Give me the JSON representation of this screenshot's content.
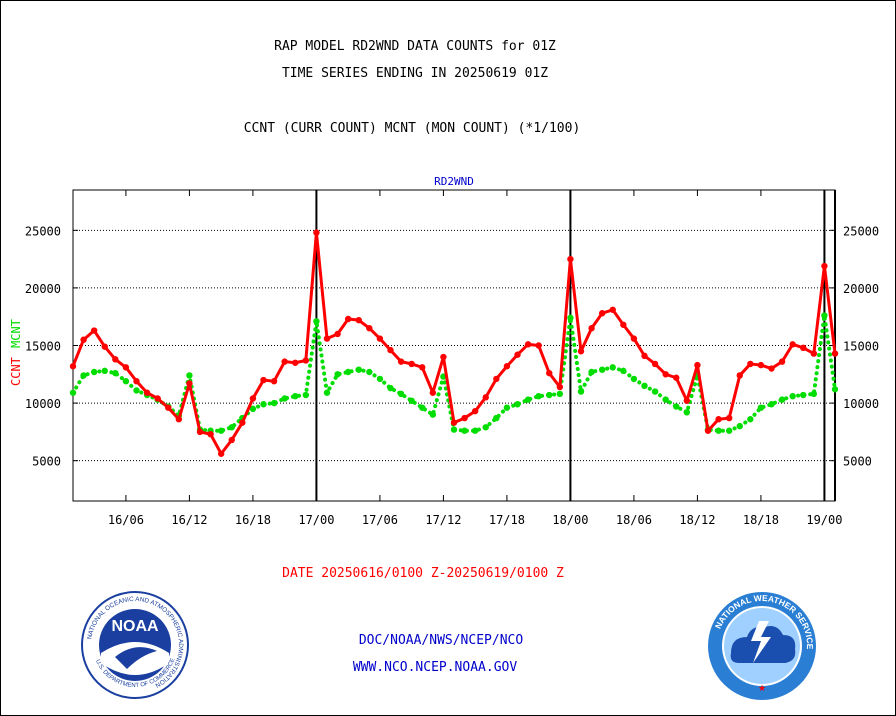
{
  "header": {
    "title_line1": "RAP MODEL RD2WND DATA COUNTS for 01Z",
    "title_line2": "TIME SERIES ENDING IN 20250619 01Z",
    "subtitle": "CCNT (CURR COUNT) MCNT (MON COUNT) (*1/100)"
  },
  "footer": {
    "date_range": "DATE 20250616/0100 Z-20250619/0100 Z",
    "org_line": "DOC/NOAA/NWS/NCEP/NCO",
    "url_line": "WWW.NCO.NCEP.NOAA.GOV"
  },
  "logos": {
    "noaa_center_text": "NOAA",
    "noaa_ring_text": "NATIONAL OCEANIC AND ATMOSPHERIC ADMINISTRATION",
    "noaa_ring_bottom": "U.S. DEPARTMENT OF COMMERCE",
    "nws_ring_text": "NATIONAL WEATHER SERVICE"
  },
  "colors": {
    "ccnt": "#ff0000",
    "mcnt": "#00dd00",
    "title_blue": "#0000cc",
    "date_red": "#ff0000",
    "footer_blue": "#0000cc",
    "noaa_blue": "#1a3fa0",
    "nws_blue": "#2a7fd4"
  },
  "chart_data": {
    "type": "line",
    "title": "RD2WND",
    "ylabel_ccnt": "CCNT",
    "ylabel_mcnt": "MCNT",
    "x_unit": "hours from 20250616/0100 Z",
    "xlim": [
      0,
      72
    ],
    "ylim": [
      1500,
      28500
    ],
    "yticks": [
      5000,
      10000,
      15000,
      20000,
      25000
    ],
    "xticks": [
      {
        "label": "16/06",
        "x": 5
      },
      {
        "label": "16/12",
        "x": 11
      },
      {
        "label": "16/18",
        "x": 17
      },
      {
        "label": "17/00",
        "x": 23
      },
      {
        "label": "17/06",
        "x": 29
      },
      {
        "label": "17/12",
        "x": 35
      },
      {
        "label": "17/18",
        "x": 41
      },
      {
        "label": "18/00",
        "x": 47
      },
      {
        "label": "18/06",
        "x": 53
      },
      {
        "label": "18/12",
        "x": 59
      },
      {
        "label": "18/18",
        "x": 65
      },
      {
        "label": "19/00",
        "x": 71
      }
    ],
    "vertical_markers": [
      23,
      47,
      71,
      72
    ],
    "grid": "horizontal dotted at y ticks",
    "series": [
      {
        "name": "CCNT",
        "values": [
          13200,
          15500,
          16300,
          14900,
          13800,
          13100,
          11900,
          10900,
          10400,
          9600,
          8600,
          11700,
          7500,
          7300,
          5600,
          6800,
          8300,
          10400,
          12000,
          11900,
          13600,
          13500,
          13700,
          24800,
          15600,
          16000,
          17300,
          17200,
          16500,
          15600,
          14600,
          13600,
          13400,
          13100,
          10900,
          14000,
          8300,
          8700,
          9300,
          10500,
          12100,
          13200,
          14200,
          15100,
          15000,
          12600,
          11400,
          22500,
          14500,
          16500,
          17800,
          18100,
          16800,
          15600,
          14100,
          13400,
          12500,
          12200,
          10200,
          13300,
          7600,
          8600,
          8700,
          12400,
          13400,
          13300,
          13000,
          13600,
          15100,
          14800,
          14300,
          21900,
          14300
        ]
      },
      {
        "name": "MCNT",
        "values": [
          10900,
          12400,
          12700,
          12800,
          12600,
          11900,
          11100,
          10700,
          10300,
          9700,
          8900,
          12400,
          7700,
          7600,
          7600,
          7900,
          8700,
          9500,
          9900,
          10000,
          10400,
          10600,
          10700,
          17100,
          10900,
          12500,
          12700,
          12900,
          12700,
          12100,
          11300,
          10800,
          10200,
          9600,
          9000,
          12300,
          7700,
          7600,
          7600,
          7900,
          8700,
          9600,
          9900,
          10300,
          10600,
          10700,
          10800,
          17400,
          11000,
          12700,
          12900,
          13100,
          12800,
          12100,
          11500,
          11000,
          10300,
          9700,
          9200,
          12400,
          7700,
          7600,
          7600,
          8000,
          8600,
          9600,
          9900,
          10300,
          10600,
          10700,
          10800,
          17600,
          11200
        ]
      }
    ]
  }
}
